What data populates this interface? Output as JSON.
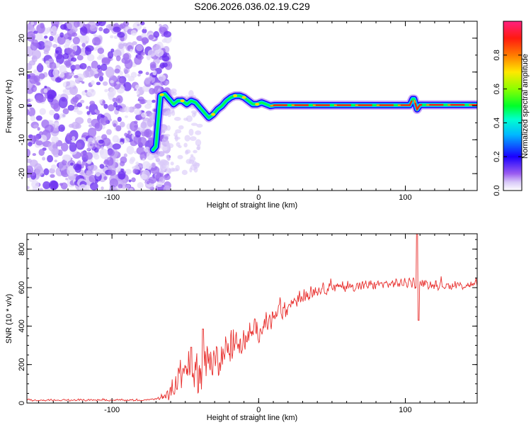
{
  "title": "S206.2026.036.02.19.C29",
  "colors": {
    "trace": "#e8302e",
    "scatter": "#7a3cf0"
  },
  "chart_data": [
    {
      "type": "heatmap",
      "xlabel": "Height of straight line (km)",
      "ylabel": "Frequency (Hz)",
      "xlim": [
        -158,
        149
      ],
      "ylim": [
        -25,
        25
      ],
      "xticks": [
        -100,
        0,
        100
      ],
      "yticks": [
        -20,
        -10,
        0,
        10,
        20
      ],
      "colorbar": {
        "label": "Normalized spectral amplitude",
        "range": [
          0,
          1
        ],
        "ticks": [
          0.0,
          0.2,
          0.4,
          0.6,
          0.8
        ]
      },
      "ridge": {
        "x": [
          -72,
          -70,
          -67,
          -64,
          -61,
          -58,
          -55,
          -52,
          -49,
          -46,
          -43,
          -40,
          -37,
          -34,
          -31,
          -28,
          -25,
          -22,
          -19,
          -16,
          -13,
          -10,
          -7,
          -4,
          -1,
          2,
          5,
          8,
          11,
          15,
          20,
          30,
          40,
          50,
          60,
          70,
          80,
          90,
          100,
          103,
          105,
          106,
          108,
          110,
          120,
          130,
          140,
          149
        ],
        "y": [
          -13,
          -12,
          3,
          3.5,
          2,
          0.5,
          1.5,
          1.5,
          0.5,
          1.5,
          1,
          -0.5,
          -2,
          -3.5,
          -2.5,
          -1,
          0,
          1.5,
          2.5,
          3,
          3,
          2.5,
          1.5,
          0.5,
          0.5,
          1,
          0.5,
          0,
          0.2,
          0.2,
          0.2,
          0.2,
          0.2,
          0.2,
          0.2,
          0.2,
          0.2,
          0.2,
          0.2,
          0.2,
          2,
          2,
          -1,
          0.3,
          0.3,
          0.3,
          0.3,
          0.3
        ]
      },
      "noise_region_x": [
        -158,
        -65
      ]
    },
    {
      "type": "line",
      "xlabel": "Height of straight line (km)",
      "ylabel": "SNR (10 * v/v)",
      "xlim": [
        -158,
        149
      ],
      "ylim": [
        0,
        880
      ],
      "xticks": [
        -100,
        0,
        100
      ],
      "yticks": [
        0,
        200,
        400,
        600,
        800
      ],
      "trend": {
        "x": [
          -158,
          -100,
          -80,
          -70,
          -64,
          -60,
          -55,
          -50,
          -45,
          -40,
          -35,
          -30,
          -25,
          -20,
          -15,
          -10,
          -5,
          0,
          5,
          10,
          15,
          20,
          25,
          30,
          35,
          40,
          45,
          50,
          60,
          70,
          80,
          90,
          100,
          110,
          120,
          130,
          140,
          149
        ],
        "y": [
          15,
          15,
          15,
          20,
          30,
          60,
          130,
          180,
          150,
          170,
          200,
          220,
          260,
          280,
          300,
          330,
          360,
          380,
          410,
          440,
          470,
          500,
          540,
          550,
          570,
          585,
          595,
          600,
          605,
          610,
          615,
          620,
          625,
          620,
          615,
          610,
          612,
          615
        ]
      },
      "noise_amplitude": {
        "x": [
          -158,
          -70,
          -64,
          -60,
          -50,
          -40,
          -20,
          0,
          20,
          40,
          149
        ],
        "y": [
          6,
          6,
          20,
          70,
          110,
          130,
          90,
          70,
          60,
          35,
          25
        ]
      },
      "spikes": [
        {
          "x": -38,
          "y": 385
        },
        {
          "x": -46,
          "y": 290
        },
        {
          "x": 108,
          "y": 880
        },
        {
          "x": 109,
          "y": 430
        }
      ]
    }
  ]
}
